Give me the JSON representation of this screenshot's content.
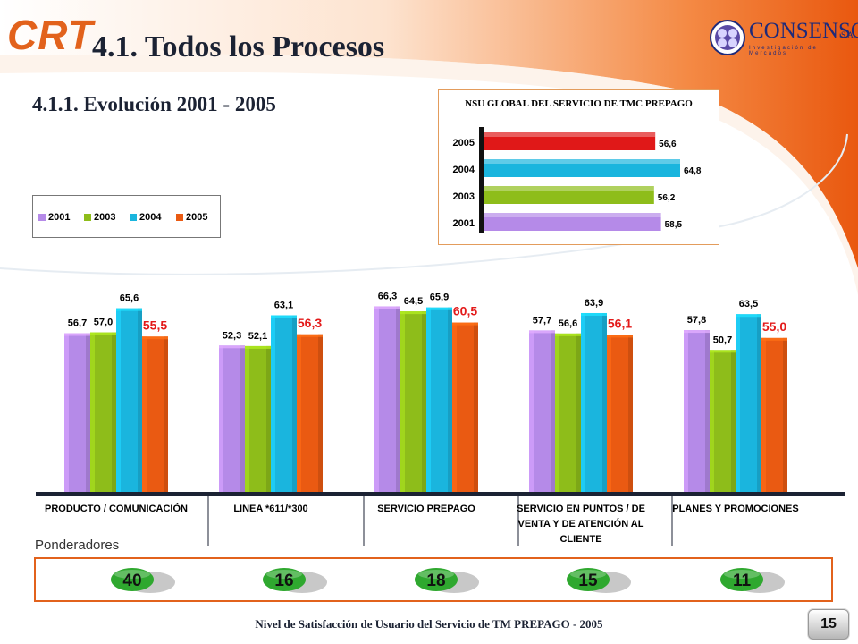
{
  "title": "4.1. Todos los Procesos",
  "subtitle": "4.1.1. Evolución 2001 - 2005",
  "logo_left": "CRT",
  "logo_right": {
    "name": "CONSENSO",
    "suffix": "S.A.",
    "tagline": "Investigación de Mercados"
  },
  "colors": {
    "y2001": "#b58ae8",
    "y2003": "#8ebd1a",
    "y2004": "#1ab5de",
    "y2005": "#ea5a12",
    "accent": "#e2621c",
    "nsu2005": "#e01818"
  },
  "legend": [
    "2001",
    "2003",
    "2004",
    "2005"
  ],
  "chart_data": [
    {
      "type": "bar",
      "orientation": "horizontal",
      "title": "NSU GLOBAL DEL SERVICIO DE TMC PREPAGO",
      "categories": [
        "2005",
        "2004",
        "2003",
        "2001"
      ],
      "values": [
        56.6,
        64.8,
        56.2,
        58.5
      ],
      "labels": [
        "56,6",
        "64,8",
        "56,2",
        "58,5"
      ]
    },
    {
      "type": "bar",
      "categories": [
        "PRODUCTO / COMUNICACIÓN",
        "LINEA *611/*300",
        "SERVICIO PREPAGO",
        "SERVICIO EN PUNTOS / DE VENTA Y DE ATENCIÓN AL CLIENTE",
        "PLANES Y PROMOCIONES"
      ],
      "series": [
        {
          "name": "2001",
          "values": [
            56.7,
            52.3,
            66.3,
            57.7,
            57.8
          ],
          "labels": [
            "56,7",
            "52,3",
            "66,3",
            "57,7",
            "57,8"
          ]
        },
        {
          "name": "2003",
          "values": [
            57.0,
            52.1,
            64.5,
            56.6,
            50.7
          ],
          "labels": [
            "57,0",
            "52,1",
            "64,5",
            "56,6",
            "50,7"
          ]
        },
        {
          "name": "2004",
          "values": [
            65.6,
            63.1,
            65.9,
            63.9,
            63.5
          ],
          "labels": [
            "65,6",
            "63,1",
            "65,9",
            "63,9",
            "63,5"
          ]
        },
        {
          "name": "2005",
          "values": [
            55.5,
            56.3,
            60.5,
            56.1,
            55.0
          ],
          "labels": [
            "55,5",
            "56,3",
            "60,5",
            "56,1",
            "55,0"
          ]
        }
      ],
      "ylim": [
        0,
        75
      ],
      "grid": false
    }
  ],
  "ponderadores": {
    "label": "Ponderadores",
    "values": [
      "40",
      "16",
      "18",
      "15",
      "11"
    ]
  },
  "footer": "Nivel de Satisfacción de Usuario del Servicio de TM PREPAGO - 2005",
  "page_number": "15"
}
